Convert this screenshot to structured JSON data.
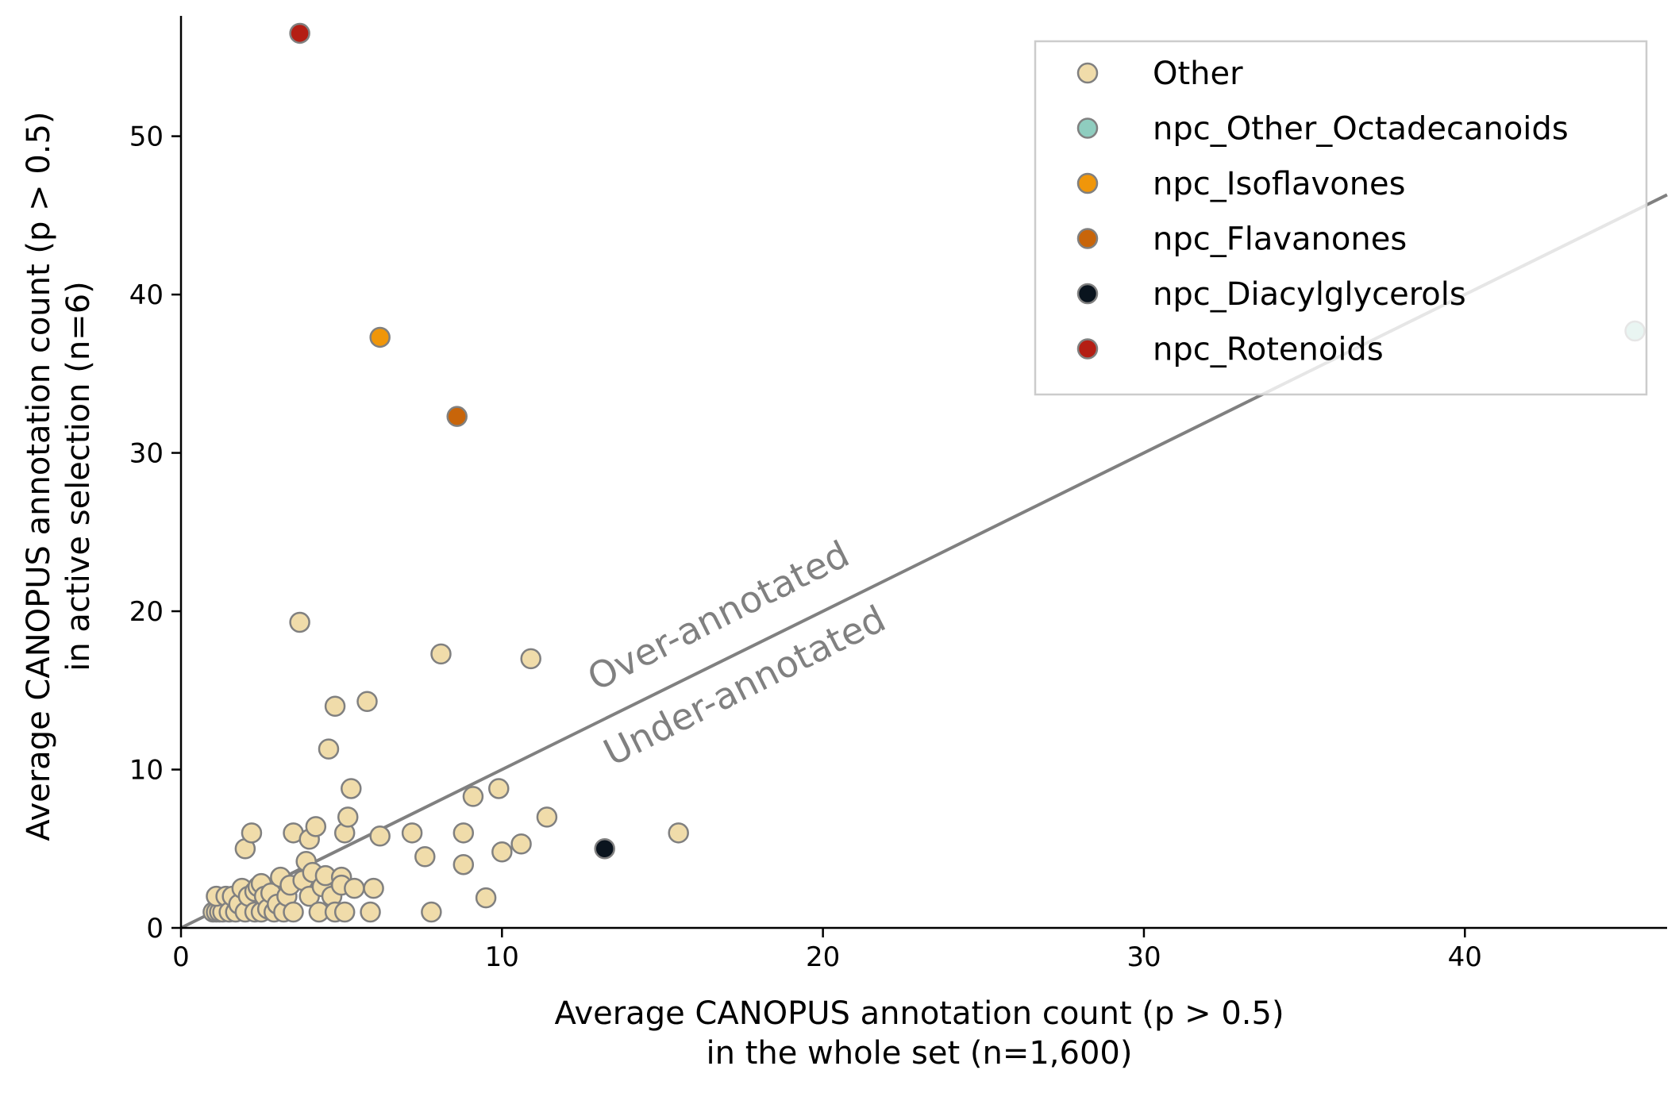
{
  "chart_data": {
    "type": "scatter",
    "xlabel_lines": [
      "Average CANOPUS annotation count (p > 0.5)",
      "in the whole set (n=1,600)"
    ],
    "ylabel_lines": [
      "Average CANOPUS annotation count (p > 0.5)",
      "in active selection (n=6)"
    ],
    "xlim": [
      0,
      46.3
    ],
    "ylim": [
      0,
      57.6
    ],
    "xticks": [
      0,
      10,
      20,
      30,
      40
    ],
    "yticks": [
      0,
      10,
      20,
      30,
      40,
      50
    ],
    "grid": false,
    "legend_position": "top-right",
    "reference_line": {
      "slope": 1,
      "color": "#808080"
    },
    "annotations": [
      "Over-annotated",
      "Under-annotated"
    ],
    "series": [
      {
        "name": "Other",
        "color": "#f0dcaa",
        "points": [
          [
            1.0,
            1.0
          ],
          [
            1.1,
            1.0
          ],
          [
            1.2,
            1.0
          ],
          [
            1.3,
            1.0
          ],
          [
            1.1,
            2.0
          ],
          [
            1.4,
            2.0
          ],
          [
            1.5,
            1.0
          ],
          [
            1.6,
            2.0
          ],
          [
            1.7,
            1.0
          ],
          [
            1.8,
            1.5
          ],
          [
            1.9,
            2.5
          ],
          [
            2.0,
            1.0
          ],
          [
            2.0,
            5.0
          ],
          [
            2.1,
            2.0
          ],
          [
            2.2,
            6.0
          ],
          [
            2.3,
            1.0
          ],
          [
            2.3,
            2.3
          ],
          [
            2.4,
            2.6
          ],
          [
            2.5,
            1.0
          ],
          [
            2.5,
            2.8
          ],
          [
            2.6,
            2.0
          ],
          [
            2.7,
            1.2
          ],
          [
            2.8,
            2.2
          ],
          [
            2.9,
            1.0
          ],
          [
            3.0,
            1.5
          ],
          [
            3.1,
            3.2
          ],
          [
            3.2,
            1.0
          ],
          [
            3.3,
            2.0
          ],
          [
            3.4,
            2.7
          ],
          [
            3.5,
            6.0
          ],
          [
            3.5,
            1.0
          ],
          [
            3.7,
            19.3
          ],
          [
            3.8,
            3.0
          ],
          [
            3.9,
            4.2
          ],
          [
            4.0,
            5.6
          ],
          [
            4.0,
            2.0
          ],
          [
            4.1,
            3.5
          ],
          [
            4.2,
            6.4
          ],
          [
            4.3,
            1.0
          ],
          [
            4.4,
            2.6
          ],
          [
            4.5,
            3.3
          ],
          [
            4.6,
            11.3
          ],
          [
            4.7,
            2.0
          ],
          [
            4.8,
            14.0
          ],
          [
            4.8,
            1.0
          ],
          [
            5.0,
            3.2
          ],
          [
            5.0,
            2.7
          ],
          [
            5.1,
            6.0
          ],
          [
            5.1,
            1.0
          ],
          [
            5.2,
            7.0
          ],
          [
            5.3,
            8.8
          ],
          [
            5.4,
            2.5
          ],
          [
            5.8,
            14.3
          ],
          [
            5.9,
            1.0
          ],
          [
            6.0,
            2.5
          ],
          [
            6.2,
            5.8
          ],
          [
            7.2,
            6.0
          ],
          [
            7.6,
            4.5
          ],
          [
            7.8,
            1.0
          ],
          [
            8.1,
            17.3
          ],
          [
            8.8,
            6.0
          ],
          [
            8.8,
            4.0
          ],
          [
            9.1,
            8.3
          ],
          [
            9.5,
            1.9
          ],
          [
            9.9,
            8.8
          ],
          [
            10.0,
            4.8
          ],
          [
            10.6,
            5.3
          ],
          [
            10.9,
            17.0
          ],
          [
            11.4,
            7.0
          ],
          [
            15.5,
            6.0
          ]
        ]
      },
      {
        "name": "npc_Other_Octadecanoids",
        "color": "#8fcdbf",
        "points": [
          [
            45.3,
            37.7
          ]
        ]
      },
      {
        "name": "npc_Isoflavones",
        "color": "#f0960a",
        "points": [
          [
            6.2,
            37.3
          ]
        ]
      },
      {
        "name": "npc_Flavanones",
        "color": "#c8650a",
        "points": [
          [
            8.6,
            32.3
          ]
        ]
      },
      {
        "name": "npc_Diacylglycerols",
        "color": "#0a141e",
        "points": [
          [
            13.2,
            5.0
          ]
        ]
      },
      {
        "name": "npc_Rotenoids",
        "color": "#b41e14",
        "points": [
          [
            3.7,
            56.5
          ]
        ]
      }
    ],
    "styles": {
      "marker_edge_color": "#808080",
      "axis_color": "#000000",
      "legend_border_color": "#cccccc"
    }
  }
}
